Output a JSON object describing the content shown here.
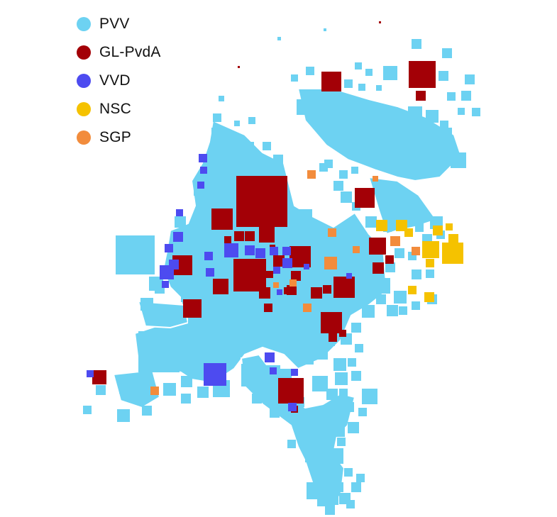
{
  "legend": {
    "items": [
      {
        "label": "PVV",
        "color": "#6dd2f2"
      },
      {
        "label": "GL-PvdA",
        "color": "#a30006"
      },
      {
        "label": "VVD",
        "color": "#4d4bf0"
      },
      {
        "label": "NSC",
        "color": "#f5c200"
      },
      {
        "label": "SGP",
        "color": "#f28c3c"
      }
    ]
  },
  "map_data": {
    "type": "square-cartogram",
    "background_color": "PVV",
    "marks_shown": [
      "PVV",
      "GL-PvdA",
      "VVD",
      "NSC",
      "SGP"
    ]
  }
}
